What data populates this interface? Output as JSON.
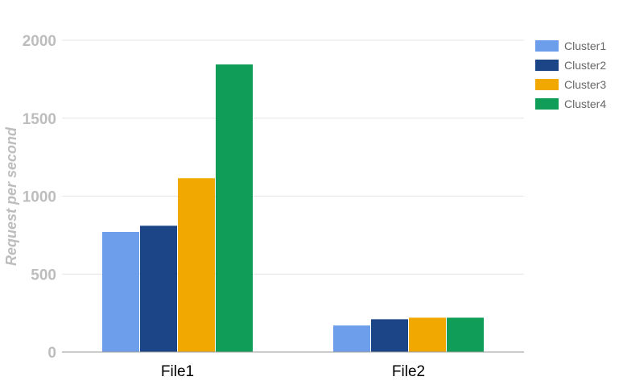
{
  "chart_data": {
    "type": "bar",
    "categories": [
      "File1",
      "File2"
    ],
    "series": [
      {
        "name": "Cluster1",
        "color": "#6d9eeb",
        "values": [
          770,
          170
        ]
      },
      {
        "name": "Cluster2",
        "color": "#1c4587",
        "values": [
          810,
          210
        ]
      },
      {
        "name": "Cluster3",
        "color": "#f1a800",
        "values": [
          1115,
          220
        ]
      },
      {
        "name": "Cluster4",
        "color": "#109d58",
        "values": [
          1845,
          220
        ]
      }
    ],
    "title": "",
    "xlabel": "",
    "ylabel": "Request per second",
    "ylim": [
      0,
      2000
    ],
    "yticks": [
      "0",
      "500",
      "1000",
      "1500",
      "2000"
    ],
    "grid": true,
    "legend_position": "right"
  }
}
